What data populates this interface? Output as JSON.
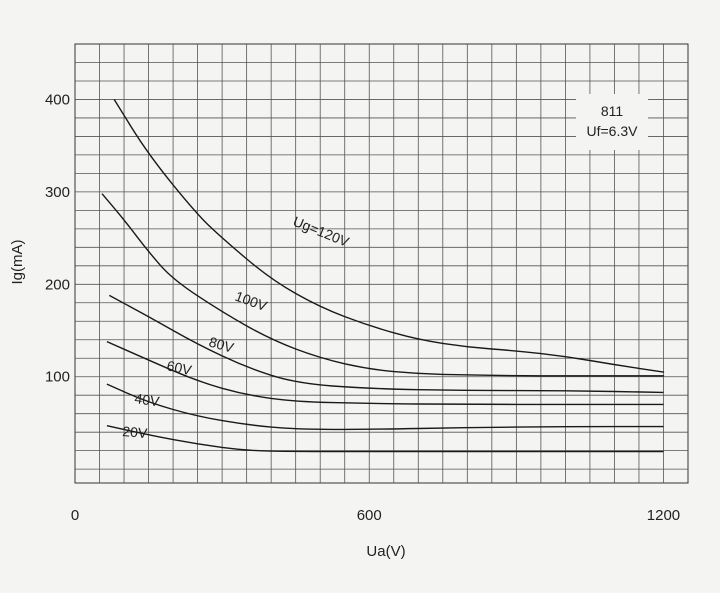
{
  "chart_data": {
    "type": "line",
    "xlabel": "Ua(V)",
    "ylabel": "Ig(mA)",
    "xlim": [
      0,
      1250
    ],
    "ylim": [
      -15,
      460
    ],
    "x_ticks": [
      {
        "value": 0,
        "label": "0"
      },
      {
        "value": 600,
        "label": "600"
      },
      {
        "value": 1200,
        "label": "1200"
      }
    ],
    "y_ticks": [
      {
        "value": 100,
        "label": "100"
      },
      {
        "value": 200,
        "label": "200"
      },
      {
        "value": 300,
        "label": "300"
      },
      {
        "value": 400,
        "label": "400"
      }
    ],
    "grid": true,
    "annotation": {
      "tube": "811",
      "filament": "Uf=6.3V"
    },
    "series": [
      {
        "name": "Ug=120V",
        "x": [
          80,
          150,
          250,
          300,
          400,
          500,
          600,
          700,
          800,
          900,
          1000,
          1100,
          1200
        ],
        "y": [
          400,
          340,
          275,
          250,
          205,
          175,
          155,
          140,
          132,
          128,
          122,
          113,
          105
        ]
      },
      {
        "name": "100V",
        "x": [
          55,
          100,
          150,
          200,
          300,
          400,
          500,
          600,
          700,
          800,
          900,
          1000,
          1100,
          1200
        ],
        "y": [
          298,
          270,
          235,
          205,
          170,
          140,
          120,
          108,
          103,
          102,
          101,
          101,
          101,
          101
        ]
      },
      {
        "name": "80V",
        "x": [
          70,
          150,
          250,
          350,
          450,
          600,
          800,
          1000,
          1200
        ],
        "y": [
          188,
          165,
          135,
          110,
          93,
          87,
          85,
          85,
          83
        ]
      },
      {
        "name": "60V",
        "x": [
          65,
          150,
          250,
          350,
          450,
          600,
          800,
          1000,
          1200
        ],
        "y": [
          138,
          118,
          95,
          80,
          73,
          71,
          70,
          70,
          70
        ]
      },
      {
        "name": "40V",
        "x": [
          65,
          150,
          250,
          350,
          450,
          600,
          800,
          1000,
          1200
        ],
        "y": [
          92,
          72,
          57,
          48,
          43,
          43,
          45,
          46,
          46
        ]
      },
      {
        "name": "20V",
        "x": [
          65,
          150,
          250,
          350,
          450,
          600,
          800,
          1000,
          1200
        ],
        "y": [
          47,
          37,
          27,
          20,
          19,
          19,
          19,
          19,
          19
        ]
      }
    ]
  }
}
